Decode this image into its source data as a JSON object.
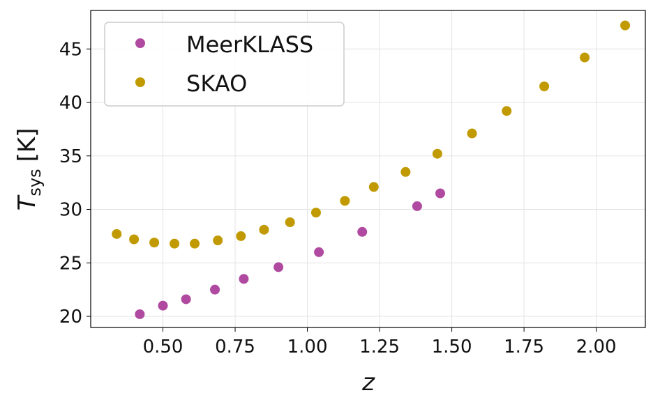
{
  "chart_data": {
    "type": "scatter",
    "title": "",
    "xlabel": "z",
    "ylabel_main": "T",
    "ylabel_sub": "sys",
    "ylabel_unit": "[K]",
    "xlim": [
      0.25,
      2.17
    ],
    "ylim": [
      18.96,
      48.6
    ],
    "grid": true,
    "legend_position": "top-left",
    "xticks": [
      0.5,
      0.75,
      1.0,
      1.25,
      1.5,
      1.75,
      2.0
    ],
    "xtick_labels": [
      "0.50",
      "0.75",
      "1.00",
      "1.25",
      "1.50",
      "1.75",
      "2.00"
    ],
    "yticks": [
      20,
      25,
      30,
      35,
      40,
      45
    ],
    "ytick_labels": [
      "20",
      "25",
      "30",
      "35",
      "40",
      "45"
    ],
    "series": [
      {
        "name": "MeerKLASS",
        "color": "#b04aa0",
        "x": [
          0.42,
          0.5,
          0.58,
          0.68,
          0.78,
          0.9,
          1.04,
          1.19,
          1.38,
          1.46
        ],
        "y": [
          20.2,
          21.0,
          21.6,
          22.5,
          23.5,
          24.6,
          26.0,
          27.9,
          30.3,
          31.5
        ]
      },
      {
        "name": "SKAO",
        "color": "#c09a00",
        "x": [
          0.34,
          0.4,
          0.47,
          0.54,
          0.61,
          0.69,
          0.77,
          0.85,
          0.94,
          1.03,
          1.13,
          1.23,
          1.34,
          1.45,
          1.57,
          1.69,
          1.82,
          1.96,
          2.1
        ],
        "y": [
          27.7,
          27.2,
          26.9,
          26.8,
          26.8,
          27.1,
          27.5,
          28.1,
          28.8,
          29.7,
          30.8,
          32.1,
          33.5,
          35.2,
          37.1,
          39.2,
          41.5,
          44.2,
          47.2
        ]
      }
    ]
  }
}
